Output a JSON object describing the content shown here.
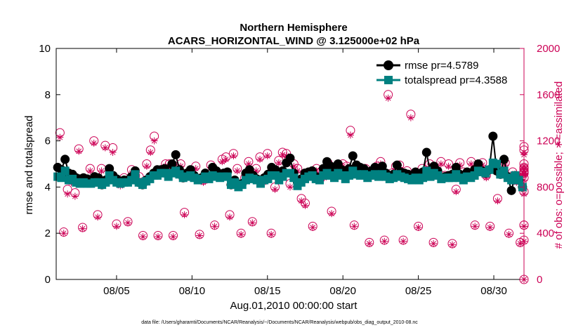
{
  "colors": {
    "rmse": "#000000",
    "totalspread": "#008080",
    "obs": "#cc0055",
    "axis": "#000000"
  },
  "chart_data": {
    "type": "line",
    "title": "Northern Hemisphere",
    "subtitle": "ACARS_HORIZONTAL_WIND @ 3.125000e+02 hPa",
    "xlabel": "Aug.01,2010 00:00:00 start",
    "ylabel": "rmse and totalspread",
    "y2label": "# of obs: o=possible; ∗=assimilated",
    "xlim": [
      1,
      32
    ],
    "ylim": [
      0,
      10
    ],
    "y2lim": [
      0,
      2000
    ],
    "x_ticks": [
      5,
      10,
      15,
      20,
      25,
      30
    ],
    "x_tick_labels": [
      "08/05",
      "08/10",
      "08/15",
      "08/20",
      "08/25",
      "08/30"
    ],
    "y_ticks": [
      0,
      2,
      4,
      6,
      8,
      10
    ],
    "y2_ticks": [
      0,
      400,
      800,
      1200,
      1600,
      2000
    ],
    "legend_position": "top-right",
    "series": [
      {
        "name": "rmse pr=4.5789",
        "axis": "left",
        "marker": "circle",
        "values": [
          4.85,
          4.75,
          5.2,
          4.6,
          4.55,
          4.4,
          4.35,
          4.4,
          4.35,
          4.3,
          4.45,
          4.4,
          4.1,
          4.3,
          4.8,
          4.5,
          4.35,
          4.25,
          4.3,
          4.3,
          4.45,
          4.7,
          4.2,
          4.1,
          4.3,
          4.45,
          4.6,
          4.75,
          4.75,
          4.8,
          4.5,
          5.0,
          5.4,
          4.75,
          4.4,
          4.6,
          4.75,
          4.5,
          4.35,
          4.4,
          4.6,
          4.4,
          4.85,
          4.7,
          4.5,
          4.6,
          4.65,
          4.1,
          4.3,
          4.05,
          4.15,
          4.6,
          4.75,
          4.5,
          4.35,
          4.2,
          4.4,
          4.55,
          4.85,
          4.75,
          4.4,
          4.7,
          5.05,
          5.25,
          4.6,
          4.2,
          4.35,
          4.6,
          4.65,
          4.7,
          4.45,
          4.4,
          4.8,
          5.1,
          4.9,
          4.65,
          5.0,
          4.75,
          4.55,
          4.8,
          5.35,
          4.95,
          4.85,
          4.8,
          4.55,
          4.7,
          4.85,
          4.6,
          4.9,
          4.6,
          4.45,
          4.55,
          4.95,
          4.65,
          4.6,
          4.55,
          4.45,
          4.65,
          4.4,
          4.65,
          5.5,
          4.6,
          4.9,
          4.7,
          4.4,
          4.45,
          4.5,
          4.55,
          4.85,
          4.55,
          4.4,
          4.65,
          4.55,
          4.75,
          5.0,
          4.7,
          4.6,
          4.75,
          6.2,
          4.7,
          4.55,
          5.2,
          4.45,
          3.85,
          4.5,
          4.3,
          4.0
        ]
      },
      {
        "name": "totalspread pr=4.3588",
        "axis": "left",
        "marker": "square",
        "values": [
          4.45,
          4.4,
          4.7,
          4.3,
          4.35,
          4.2,
          4.15,
          4.2,
          4.15,
          4.15,
          4.2,
          4.2,
          4.1,
          4.2,
          4.5,
          4.3,
          4.2,
          4.15,
          4.2,
          4.2,
          4.3,
          4.55,
          4.2,
          4.1,
          4.25,
          4.35,
          4.5,
          4.5,
          4.6,
          4.6,
          4.45,
          4.6,
          4.7,
          4.55,
          4.4,
          4.45,
          4.5,
          4.4,
          4.3,
          4.35,
          4.45,
          4.35,
          4.5,
          4.45,
          4.4,
          4.45,
          4.45,
          4.1,
          4.2,
          4.0,
          4.1,
          4.3,
          4.4,
          4.35,
          4.3,
          4.15,
          4.3,
          4.35,
          4.5,
          4.5,
          4.3,
          4.45,
          4.6,
          4.6,
          4.4,
          4.05,
          4.2,
          4.35,
          4.45,
          4.5,
          4.35,
          4.3,
          4.5,
          4.6,
          4.5,
          4.4,
          4.6,
          4.5,
          4.35,
          4.5,
          4.7,
          4.55,
          4.5,
          4.55,
          4.4,
          4.5,
          4.55,
          4.45,
          4.55,
          4.45,
          4.35,
          4.4,
          4.55,
          4.45,
          4.4,
          4.35,
          4.3,
          4.4,
          4.3,
          4.4,
          4.7,
          4.45,
          4.6,
          4.5,
          4.35,
          4.4,
          4.4,
          4.4,
          4.55,
          4.4,
          4.3,
          4.45,
          4.4,
          4.5,
          4.7,
          4.65,
          4.6,
          4.75,
          5.05,
          5.0,
          4.55,
          4.7,
          4.4,
          4.3,
          4.5,
          4.3,
          4.0
        ]
      },
      {
        "name": "# obs possible",
        "axis": "right",
        "marker": "open-circle",
        "values": [
          1270,
          410,
          780,
          860,
          750,
          1130,
          450,
          860,
          960,
          1200,
          560,
          960,
          1160,
          880,
          1140,
          480,
          840,
          880,
          500,
          950,
          900,
          890,
          380,
          1000,
          1120,
          1240,
          380,
          950,
          1000,
          1000,
          380,
          960,
          1000,
          580,
          920,
          900,
          980,
          390,
          860,
          880,
          990,
          470,
          920,
          1040,
          1060,
          560,
          1090,
          960,
          400,
          880,
          1020,
          500,
          960,
          1060,
          860,
          1090,
          400,
          800,
          1030,
          1100,
          1090,
          830,
          1000,
          960,
          700,
          660,
          920,
          460,
          960,
          930,
          900,
          1010,
          590,
          920,
          960,
          1000,
          980,
          1290,
          470,
          920,
          920,
          960,
          320,
          920,
          980,
          1020,
          340,
          1600,
          920,
          980,
          990,
          340,
          940,
          1430,
          900,
          460,
          960,
          900,
          1000,
          320,
          920,
          1020,
          900,
          1000,
          310,
          780,
          1010,
          930,
          900,
          1020,
          470,
          990,
          1010,
          900,
          460,
          960,
          700,
          970,
          1010,
          400,
          930,
          860,
          320,
          920,
          1150,
          470,
          1120,
          760,
          960,
          930,
          1000,
          470,
          880,
          970,
          340,
          920,
          940,
          0
        ]
      },
      {
        "name": "# obs assimilated",
        "axis": "right",
        "marker": "asterisk",
        "values": [
          1230,
          400,
          740,
          840,
          720,
          1110,
          440,
          840,
          940,
          1180,
          540,
          940,
          1140,
          860,
          1100,
          460,
          810,
          860,
          490,
          920,
          880,
          860,
          370,
          980,
          1100,
          1200,
          370,
          930,
          980,
          980,
          370,
          940,
          980,
          560,
          900,
          880,
          960,
          380,
          840,
          860,
          970,
          460,
          900,
          1020,
          1040,
          540,
          1070,
          940,
          390,
          860,
          1000,
          490,
          940,
          1040,
          840,
          1070,
          390,
          780,
          1010,
          1080,
          1070,
          800,
          980,
          940,
          680,
          640,
          900,
          450,
          940,
          910,
          880,
          990,
          570,
          900,
          940,
          980,
          960,
          1250,
          460,
          900,
          900,
          940,
          310,
          900,
          960,
          1000,
          330,
          1570,
          900,
          960,
          970,
          330,
          920,
          1400,
          880,
          450,
          940,
          880,
          980,
          310,
          900,
          1000,
          880,
          980,
          300,
          760,
          990,
          910,
          880,
          1000,
          460,
          970,
          990,
          880,
          450,
          940,
          680,
          950,
          990,
          390,
          910,
          840,
          310,
          900,
          1100,
          460,
          1080,
          740,
          940,
          910,
          980,
          460,
          860,
          950,
          330,
          900,
          920,
          0
        ]
      }
    ]
  },
  "footnote": "data file: /Users/gharamti/Documents/NCAR/Reanalysis/~/Documents/NCAR/Reanalysis/webpub/obs_diag_output_2010-08.nc"
}
